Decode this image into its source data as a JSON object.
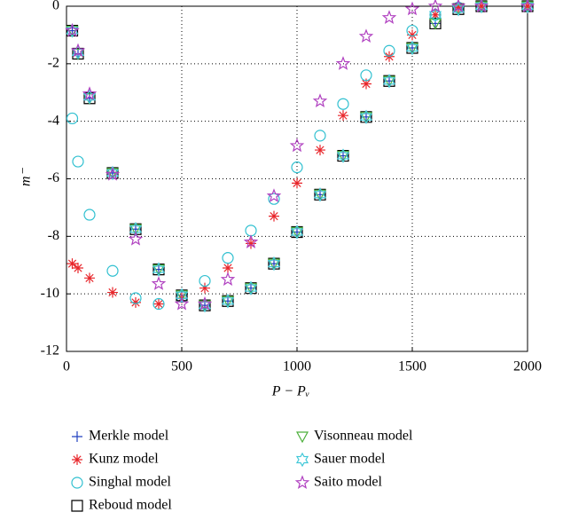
{
  "chart_data": {
    "type": "scatter",
    "xlabel": "P − Pᵥ",
    "ylabel": "m⁻",
    "x": [
      25,
      50,
      100,
      200,
      300,
      400,
      500,
      600,
      700,
      800,
      900,
      1000,
      1100,
      1200,
      1300,
      1400,
      1500,
      1600,
      1700,
      1800,
      2000
    ],
    "xlim": [
      0,
      2000
    ],
    "xticks": [
      0,
      500,
      1000,
      1500,
      2000
    ],
    "ylim": [
      -12,
      0
    ],
    "yticks": [
      0,
      -2,
      -4,
      -6,
      -8,
      -10,
      -12
    ],
    "grid": true,
    "series": [
      {
        "name": "Merkle model",
        "color": "#2040c0",
        "marker": "plus",
        "values": [
          -0.85,
          -1.65,
          -3.2,
          -5.8,
          -7.75,
          -9.15,
          -10.05,
          -10.4,
          -10.25,
          -9.8,
          -8.95,
          -7.85,
          -6.55,
          -5.2,
          -3.85,
          -2.6,
          -1.45,
          -0.6,
          -0.1,
          0,
          0
        ]
      },
      {
        "name": "Kunz model",
        "color": "#e8262b",
        "marker": "asterisk",
        "values": [
          -8.95,
          -9.1,
          -9.45,
          -9.95,
          -10.3,
          -10.35,
          -10.15,
          -9.8,
          -9.1,
          -8.25,
          -7.3,
          -6.15,
          -5.0,
          -3.8,
          -2.7,
          -1.75,
          -1.0,
          -0.3,
          -0.05,
          0,
          0
        ]
      },
      {
        "name": "Singhal model",
        "color": "#30c0d0",
        "marker": "circle",
        "values": [
          -3.9,
          -5.4,
          -7.25,
          -9.2,
          -10.15,
          -10.35,
          -10.1,
          -9.55,
          -8.75,
          -7.8,
          -6.7,
          -5.6,
          -4.5,
          -3.4,
          -2.4,
          -1.55,
          -0.85,
          -0.3,
          -0.05,
          0,
          0
        ]
      },
      {
        "name": "Reboud model",
        "color": "#000000",
        "marker": "square",
        "values": [
          -0.85,
          -1.65,
          -3.2,
          -5.8,
          -7.75,
          -9.15,
          -10.05,
          -10.4,
          -10.25,
          -9.8,
          -8.95,
          -7.85,
          -6.55,
          -5.2,
          -3.85,
          -2.6,
          -1.45,
          -0.6,
          -0.1,
          0,
          0
        ]
      },
      {
        "name": "Visonneau model",
        "color": "#4caf3a",
        "marker": "triangle-down",
        "values": [
          -0.85,
          -1.65,
          -3.2,
          -5.8,
          -7.75,
          -9.15,
          -10.05,
          -10.4,
          -10.25,
          -9.8,
          -8.95,
          -7.85,
          -6.55,
          -5.2,
          -3.85,
          -2.6,
          -1.45,
          -0.6,
          -0.1,
          0,
          0
        ]
      },
      {
        "name": "Sauer model",
        "color": "#40c8d8",
        "marker": "hexagram",
        "values": [
          -0.85,
          -1.6,
          -3.15,
          -5.8,
          -7.75,
          -9.15,
          -10.05,
          -10.4,
          -10.25,
          -9.8,
          -8.95,
          -7.85,
          -6.55,
          -5.2,
          -3.85,
          -2.6,
          -1.45,
          -0.3,
          -0.1,
          0,
          0
        ]
      },
      {
        "name": "Saito model",
        "color": "#b040c0",
        "marker": "pentagram",
        "values": [
          -0.85,
          -1.55,
          -3.05,
          -5.85,
          -8.1,
          -9.65,
          -10.35,
          -10.35,
          -9.5,
          -8.2,
          -6.6,
          -4.85,
          -3.3,
          -2.0,
          -1.05,
          -0.4,
          -0.1,
          0,
          0,
          0,
          0
        ]
      }
    ]
  }
}
